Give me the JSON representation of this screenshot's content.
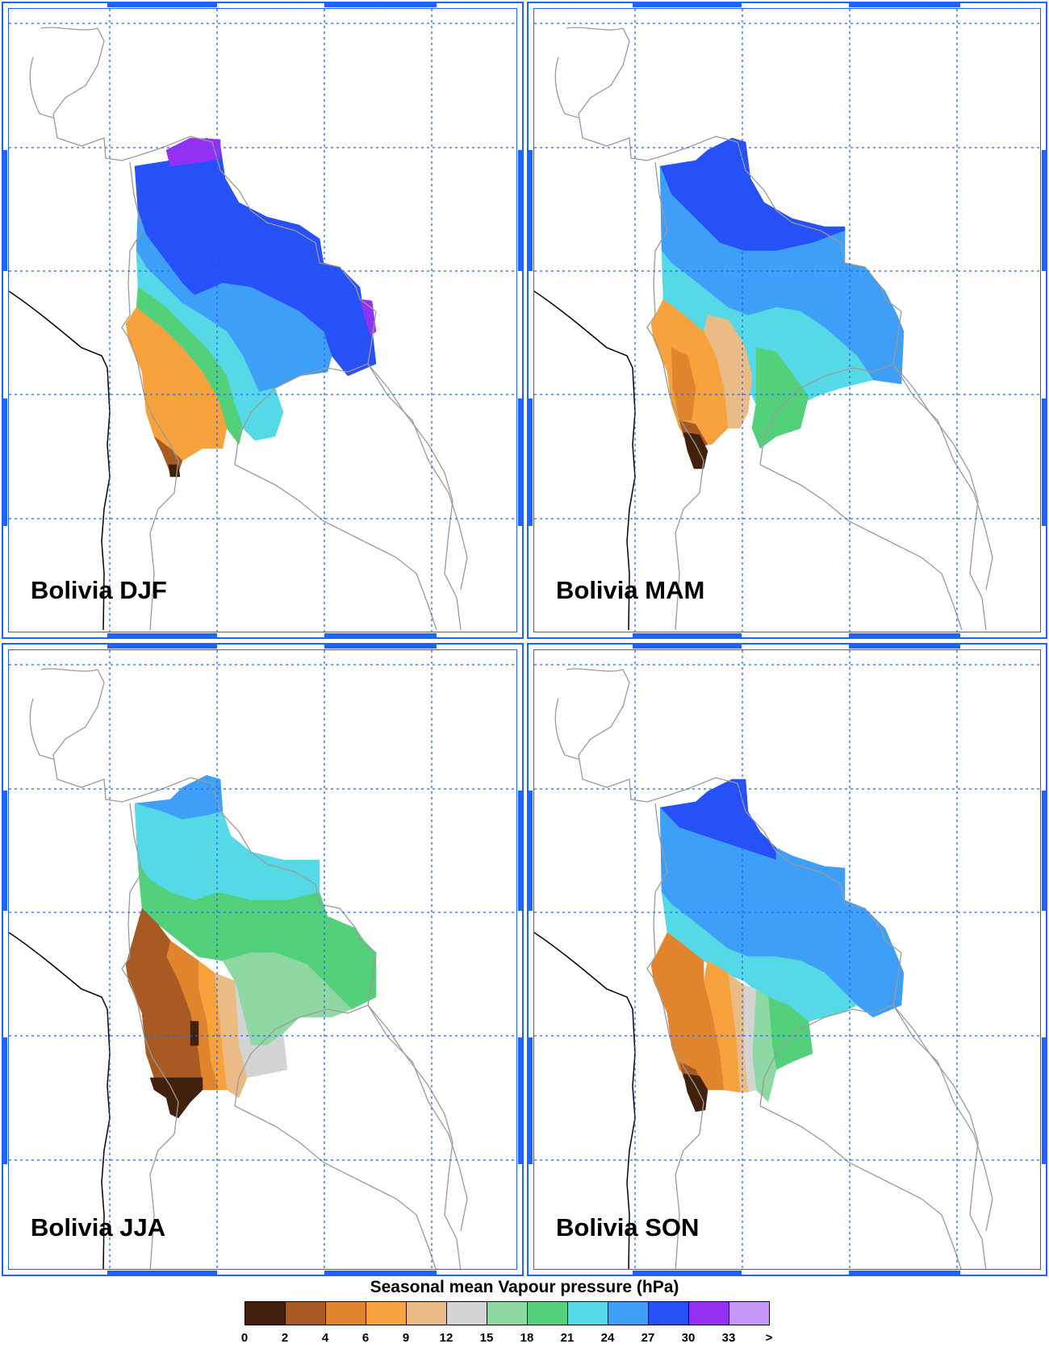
{
  "panels": [
    {
      "id": "djf",
      "title": "Bolivia DJF"
    },
    {
      "id": "mam",
      "title": "Bolivia MAM"
    },
    {
      "id": "jja",
      "title": "Bolivia JJA"
    },
    {
      "id": "son",
      "title": "Bolivia SON"
    }
  ],
  "legend": {
    "title": "Seasonal mean Vapour pressure (hPa)",
    "labels": [
      "0",
      "2",
      "4",
      "6",
      "9",
      "12",
      "15",
      "18",
      "21",
      "24",
      "27",
      "30",
      "33",
      ">"
    ],
    "colors": [
      "#42210c",
      "#a85a22",
      "#e0842e",
      "#f8a23e",
      "#ebbb86",
      "#d4d4d4",
      "#8ed9a3",
      "#52d17a",
      "#56d9e6",
      "#3e9ff9",
      "#2650f8",
      "#9430f3",
      "#c696f9"
    ]
  },
  "colors": {
    "frame": "#1f63ff",
    "grid": "#1f63ff",
    "borders": "#9a9a9a",
    "coast": "#000000"
  }
}
